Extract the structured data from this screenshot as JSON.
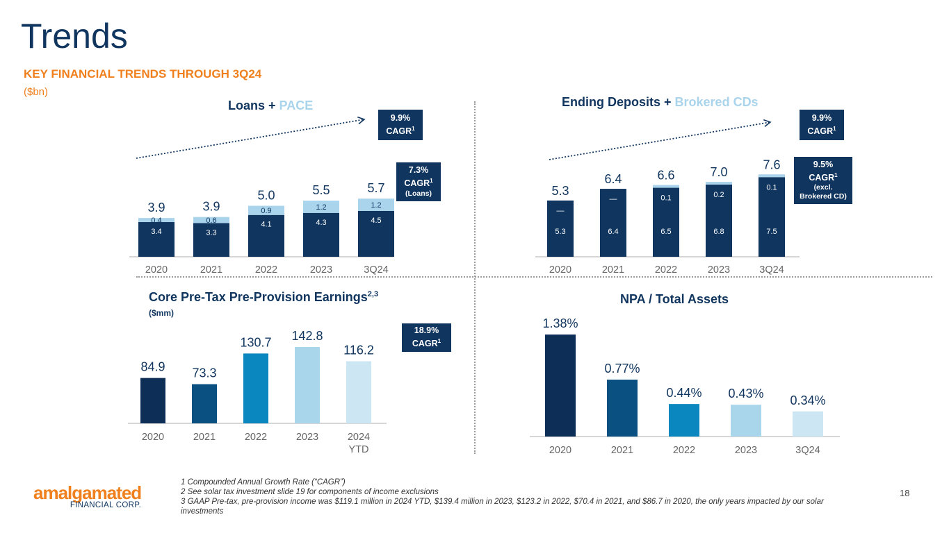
{
  "page": {
    "title": "Trends",
    "subtitle": "KEY FINANCIAL TRENDS THROUGH 3Q24",
    "unit": "($bn)",
    "page_number": "18",
    "logo": {
      "wordmark": "amalgamated",
      "sub": "FINANCIAL CORP."
    },
    "footnotes": [
      "1 Compounded Annual Growth Rate (“CAGR”)",
      "2 See solar tax investment slide 19 for components of income exclusions",
      "3 GAAP Pre-tax, pre-provision income was $119.1 million in 2024 YTD, $139.4 million in 2023, $123.2 in 2022, $70.4 in 2021, and $86.7 in 2020, the only years impacted by our solar investments"
    ]
  },
  "colors": {
    "navy": "#10355e",
    "light_blue": "#a9d4ec",
    "orange": "#f0801d",
    "ramp": [
      "#0d2f57",
      "#0a5081",
      "#0a87bf",
      "#aad6ec",
      "#cde6f3"
    ]
  },
  "chart_data": [
    {
      "id": "loans",
      "type": "bar",
      "stacked": true,
      "title_main": "Loans + ",
      "title_highlight": "PACE",
      "categories": [
        "2020",
        "2021",
        "2022",
        "2023",
        "3Q24"
      ],
      "series": [
        {
          "name": "Loans",
          "values": [
            3.4,
            3.3,
            4.1,
            4.3,
            4.5
          ],
          "labels": [
            "3.4",
            "3.3",
            "4.1",
            "4.3",
            "4.5"
          ]
        },
        {
          "name": "PACE",
          "values": [
            0.4,
            0.6,
            0.9,
            1.2,
            1.2
          ],
          "labels": [
            "0.4",
            "0.6",
            "0.9",
            "1.2",
            "1.2"
          ]
        }
      ],
      "totals": [
        "3.9",
        "3.9",
        "5.0",
        "5.5",
        "5.7"
      ],
      "badges": [
        {
          "lines": [
            "9.9%",
            "CAGR"
          ],
          "sup": "1"
        },
        {
          "lines": [
            "7.3%",
            "CAGR",
            "(Loans)"
          ],
          "sup": "1"
        }
      ]
    },
    {
      "id": "deposits",
      "type": "bar",
      "stacked": true,
      "title_main": "Ending Deposits + ",
      "title_highlight": "Brokered CDs",
      "categories": [
        "2020",
        "2021",
        "2022",
        "2023",
        "3Q24"
      ],
      "series": [
        {
          "name": "Deposits",
          "values": [
            5.3,
            6.4,
            6.5,
            6.8,
            7.5
          ],
          "labels": [
            "5.3",
            "6.4",
            "6.5",
            "6.8",
            "7.5"
          ]
        },
        {
          "name": "Brokered CDs",
          "values": [
            0,
            0,
            0.1,
            0.2,
            0.1
          ],
          "labels": [
            "—",
            "—",
            "0.1",
            "0.2",
            "0.1"
          ]
        }
      ],
      "totals": [
        "5.3",
        "6.4",
        "6.6",
        "7.0",
        "7.6"
      ],
      "badges": [
        {
          "lines": [
            "9.9%",
            "CAGR"
          ],
          "sup": "1"
        },
        {
          "lines": [
            "9.5%",
            "CAGR",
            "(excl.",
            "Brokered CD)"
          ],
          "sup": "1"
        }
      ]
    },
    {
      "id": "ppe",
      "type": "bar",
      "title_main": "Core Pre-Tax Pre-Provision Earnings",
      "title_sup": "2,3",
      "unit": "($mm)",
      "categories": [
        "2020",
        "2021",
        "2022",
        "2023",
        "2024 YTD"
      ],
      "values": [
        84.9,
        73.3,
        130.7,
        142.8,
        116.2
      ],
      "labels": [
        "84.9",
        "73.3",
        "130.7",
        "142.8",
        "116.2"
      ],
      "badges": [
        {
          "lines": [
            "18.9%",
            "CAGR"
          ],
          "sup": "1"
        }
      ]
    },
    {
      "id": "npa",
      "type": "bar",
      "title_main": "NPA / Total Assets",
      "categories": [
        "2020",
        "2021",
        "2022",
        "2023",
        "3Q24"
      ],
      "values": [
        1.38,
        0.77,
        0.44,
        0.43,
        0.34
      ],
      "labels": [
        "1.38%",
        "0.77%",
        "0.44%",
        "0.43%",
        "0.34%"
      ]
    }
  ]
}
